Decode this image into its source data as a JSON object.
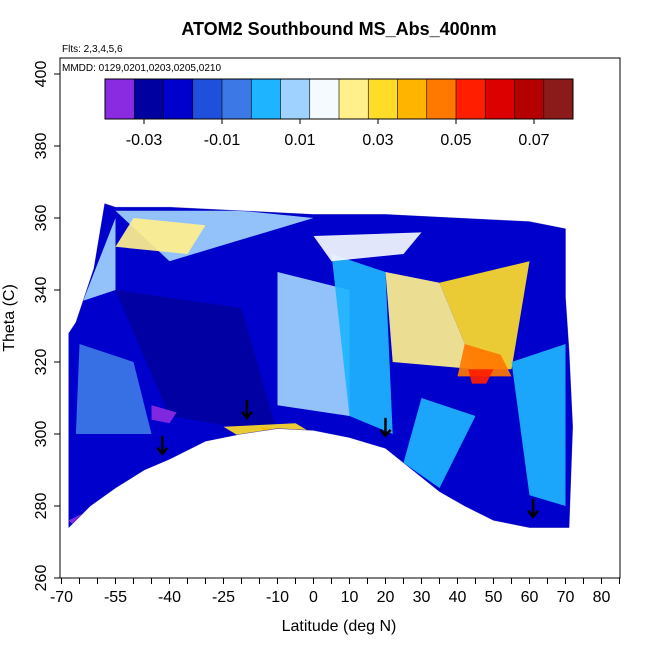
{
  "chart_data": {
    "type": "heatmap",
    "title": "ATOM2 Southbound MS_Abs_400nm",
    "subtitle_flights": "Flts: 2,3,4,5,6",
    "subtitle_dates": "MMDD: 0129,0201,0203,0205,0210",
    "xlabel": "Latitude (deg N)",
    "ylabel": "Theta (C)",
    "xlim": [
      -70,
      85
    ],
    "ylim": [
      260,
      400
    ],
    "x_ticks": [
      -70,
      -55,
      -40,
      -25,
      -10,
      0,
      10,
      20,
      30,
      40,
      50,
      60,
      70,
      80
    ],
    "x_tick_labels": [
      "-70",
      "-55",
      "-40",
      "-25",
      "-10",
      "0",
      "10",
      "20",
      "30",
      "40",
      "50",
      "60",
      "70",
      "80"
    ],
    "y_ticks": [
      260,
      280,
      300,
      320,
      340,
      360,
      380,
      400
    ],
    "y_tick_labels": [
      "260",
      "280",
      "300",
      "320",
      "340",
      "360",
      "380",
      "400"
    ],
    "colorbar": {
      "range": [
        -0.04,
        0.08
      ],
      "tick_values": [
        -0.03,
        -0.01,
        0.01,
        0.03,
        0.05,
        0.07
      ],
      "tick_labels": [
        "-0.03",
        "-0.01",
        "0.01",
        "0.03",
        "0.05",
        "0.07"
      ],
      "colors": [
        "#8a2be2",
        "#0000a0",
        "#0000cd",
        "#1e50dc",
        "#3c78e6",
        "#1eb4ff",
        "#a0d2ff",
        "#f5faff",
        "#fff08c",
        "#ffdc28",
        "#ffb400",
        "#ff7800",
        "#ff1e00",
        "#dc0000",
        "#b40000",
        "#8b1a1a"
      ]
    },
    "data_outline": [
      [
        -68,
        274
      ],
      [
        -62,
        280
      ],
      [
        -55,
        285
      ],
      [
        -47,
        290
      ],
      [
        -40,
        293
      ],
      [
        -30,
        298
      ],
      [
        -20,
        300
      ],
      [
        -10,
        301.5
      ],
      [
        0,
        301
      ],
      [
        10,
        299
      ],
      [
        20,
        296
      ],
      [
        25,
        292
      ],
      [
        30,
        288
      ],
      [
        35,
        284
      ],
      [
        42,
        280
      ],
      [
        50,
        276
      ],
      [
        55,
        275
      ],
      [
        60,
        274
      ],
      [
        71,
        274
      ],
      [
        72,
        302
      ],
      [
        71,
        323
      ],
      [
        70,
        338
      ],
      [
        70,
        357
      ],
      [
        60,
        359
      ],
      [
        40,
        360
      ],
      [
        20,
        361
      ],
      [
        0,
        361
      ],
      [
        -20,
        362
      ],
      [
        -40,
        363
      ],
      [
        -55,
        363
      ],
      [
        -58,
        364
      ],
      [
        -61,
        346
      ],
      [
        -64,
        337
      ],
      [
        -66,
        331
      ],
      [
        -68,
        328
      ]
    ],
    "patches": [
      {
        "poly": [
          [
            -55,
            362
          ],
          [
            -20,
            362
          ],
          [
            0,
            360
          ],
          [
            -40,
            348
          ]
        ],
        "value": 0.012
      },
      {
        "poly": [
          [
            -64,
            337
          ],
          [
            -55,
            360
          ],
          [
            -55,
            340
          ]
        ],
        "value": 0.012
      },
      {
        "poly": [
          [
            -55,
            340
          ],
          [
            -20,
            335
          ],
          [
            -10,
            300
          ],
          [
            -40,
            305
          ]
        ],
        "value": -0.028
      },
      {
        "poly": [
          [
            -10,
            345
          ],
          [
            10,
            340
          ],
          [
            10,
            305
          ],
          [
            -10,
            308
          ]
        ],
        "value": 0.006
      },
      {
        "poly": [
          [
            5,
            350
          ],
          [
            20,
            345
          ],
          [
            22,
            300
          ],
          [
            10,
            305
          ]
        ],
        "value": 0.002
      },
      {
        "poly": [
          [
            20,
            345
          ],
          [
            35,
            342
          ],
          [
            45,
            318
          ],
          [
            22,
            320
          ]
        ],
        "value": 0.024
      },
      {
        "poly": [
          [
            35,
            342
          ],
          [
            60,
            348
          ],
          [
            55,
            318
          ],
          [
            45,
            318
          ]
        ],
        "value": 0.034
      },
      {
        "poly": [
          [
            42,
            325
          ],
          [
            52,
            322
          ],
          [
            55,
            316
          ],
          [
            40,
            316
          ]
        ],
        "value": 0.044
      },
      {
        "poly": [
          [
            43,
            318
          ],
          [
            50,
            318
          ],
          [
            48,
            314
          ],
          [
            44,
            314
          ]
        ],
        "value": 0.055
      },
      {
        "poly": [
          [
            -65,
            325
          ],
          [
            -50,
            320
          ],
          [
            -45,
            300
          ],
          [
            -66,
            300
          ]
        ],
        "value": -0.004
      },
      {
        "poly": [
          [
            -25,
            302
          ],
          [
            -5,
            303
          ],
          [
            0,
            300
          ],
          [
            -20,
            299
          ]
        ],
        "value": 0.028
      },
      {
        "poly": [
          [
            -15,
            302
          ],
          [
            -10,
            301
          ],
          [
            -12,
            300
          ]
        ],
        "value": 0.04
      },
      {
        "poly": [
          [
            30,
            310
          ],
          [
            45,
            305
          ],
          [
            35,
            285
          ],
          [
            25,
            292
          ]
        ],
        "value": 0.002
      },
      {
        "poly": [
          [
            55,
            320
          ],
          [
            70,
            325
          ],
          [
            70,
            280
          ],
          [
            60,
            283
          ]
        ],
        "value": 0.002
      },
      {
        "poly": [
          [
            -45,
            308
          ],
          [
            -38,
            306
          ],
          [
            -40,
            303
          ],
          [
            -45,
            304
          ]
        ],
        "value": -0.036
      },
      {
        "poly": [
          [
            -68,
            276
          ],
          [
            -64,
            278
          ],
          [
            -66,
            274
          ]
        ],
        "value": -0.036
      },
      {
        "poly": [
          [
            -50,
            360
          ],
          [
            -30,
            358
          ],
          [
            -35,
            350
          ],
          [
            -55,
            352
          ]
        ],
        "value": 0.02
      },
      {
        "poly": [
          [
            0,
            355
          ],
          [
            30,
            356
          ],
          [
            25,
            350
          ],
          [
            5,
            348
          ]
        ],
        "value": 0.016
      }
    ],
    "markers": [
      {
        "x": -42,
        "y": 294.5,
        "label": "arrow"
      },
      {
        "x": -18.5,
        "y": 304.5,
        "label": "arrow"
      },
      {
        "x": 20,
        "y": 299.5,
        "label": "arrow"
      },
      {
        "x": 61,
        "y": 277,
        "label": "arrow"
      }
    ]
  }
}
